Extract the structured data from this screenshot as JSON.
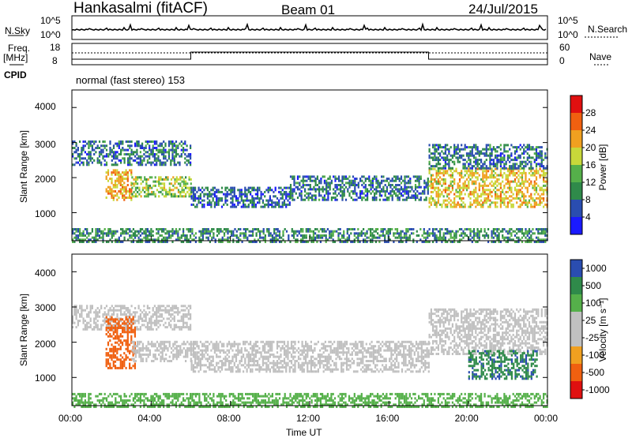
{
  "header": {
    "station": "Hankasalmi (fitACF)",
    "beam": "Beam 01",
    "date": "24/Jul/2015"
  },
  "panels": {
    "nsky": {
      "label": "N.Sky",
      "left_ticks": [
        "10^5",
        "10^0"
      ],
      "right_ticks": [
        "10^5",
        "10^0"
      ],
      "right_label": "N.Search"
    },
    "freq": {
      "label_line1": "Freq.",
      "label_line2": "[MHz]",
      "left_ticks": [
        "18",
        "8"
      ],
      "right_ticks": [
        "60",
        "0"
      ],
      "right_label": "Nave"
    },
    "cpid": {
      "label": "CPID",
      "value": "normal (fast stereo) 153"
    }
  },
  "colors": {
    "power": [
      "#1a1aff",
      "#2a4db0",
      "#2f8a4a",
      "#55b04a",
      "#c8d83a",
      "#f0a020",
      "#f06010",
      "#e01010"
    ],
    "velocity": [
      "#e01010",
      "#f06010",
      "#f0a020",
      "#c0c0c0",
      "#c0c0c0",
      "#55b04a",
      "#2f8a4a",
      "#2a4db0"
    ],
    "scatter_gray": "#c0c0c0"
  },
  "chart_data": [
    {
      "type": "heatmap",
      "name": "power",
      "ylabel": "Slant Range [km]",
      "yticks": [
        "1000",
        "2000",
        "3000",
        "4000"
      ],
      "ylim": [
        200,
        4500
      ],
      "colorbar_label": "Power [dB]",
      "colorbar_ticks": [
        "4",
        "8",
        "12",
        "16",
        "20",
        "24",
        "28"
      ],
      "clim": [
        0,
        32
      ],
      "echo_bands": [
        {
          "t_start": 0.0,
          "t_end": 6.0,
          "r_low": 2400,
          "r_high": 3100,
          "level": 8
        },
        {
          "t_start": 1.7,
          "t_end": 3.0,
          "r_low": 1400,
          "r_high": 2300,
          "level": 22
        },
        {
          "t_start": 3.0,
          "t_end": 6.0,
          "r_low": 1500,
          "r_high": 2100,
          "level": 16
        },
        {
          "t_start": 6.0,
          "t_end": 11.0,
          "r_low": 1200,
          "r_high": 1800,
          "level": 7
        },
        {
          "t_start": 11.0,
          "t_end": 18.0,
          "r_low": 1400,
          "r_high": 2100,
          "level": 8
        },
        {
          "t_start": 18.0,
          "t_end": 24.0,
          "r_low": 1200,
          "r_high": 2300,
          "level": 20
        },
        {
          "t_start": 18.0,
          "t_end": 24.0,
          "r_low": 2300,
          "r_high": 3000,
          "level": 8
        },
        {
          "t_start": 0.0,
          "t_end": 24.0,
          "r_low": 200,
          "r_high": 600,
          "level": 10
        }
      ]
    },
    {
      "type": "heatmap",
      "name": "velocity",
      "ylabel": "Slant Range [km]",
      "yticks": [
        "1000",
        "2000",
        "3000",
        "4000"
      ],
      "ylim": [
        200,
        4500
      ],
      "colorbar_label": "Velocity [m s⁻¹]",
      "colorbar_ticks": [
        "1000",
        "500",
        "100",
        "25",
        "-25",
        "-100",
        "-500",
        "-1000"
      ],
      "echo_bands": [
        {
          "t_start": 0.0,
          "t_end": 6.0,
          "r_low": 2400,
          "r_high": 3100,
          "v": 0
        },
        {
          "t_start": 1.7,
          "t_end": 3.2,
          "r_low": 1300,
          "r_high": 2800,
          "v": -300
        },
        {
          "t_start": 3.0,
          "t_end": 6.0,
          "r_low": 1500,
          "r_high": 2100,
          "v": 0
        },
        {
          "t_start": 6.0,
          "t_end": 18.0,
          "r_low": 1200,
          "r_high": 2100,
          "v": 0
        },
        {
          "t_start": 18.0,
          "t_end": 24.0,
          "r_low": 1700,
          "r_high": 3000,
          "v": 0
        },
        {
          "t_start": 20.0,
          "t_end": 23.5,
          "r_low": 1000,
          "r_high": 1800,
          "v": 400
        },
        {
          "t_start": 0.0,
          "t_end": 24.0,
          "r_low": 200,
          "r_high": 600,
          "v": 50
        }
      ]
    }
  ],
  "xaxis": {
    "label": "Time UT",
    "ticks": [
      "00:00",
      "04:00",
      "08:00",
      "12:00",
      "16:00",
      "20:00",
      "00:00"
    ]
  }
}
